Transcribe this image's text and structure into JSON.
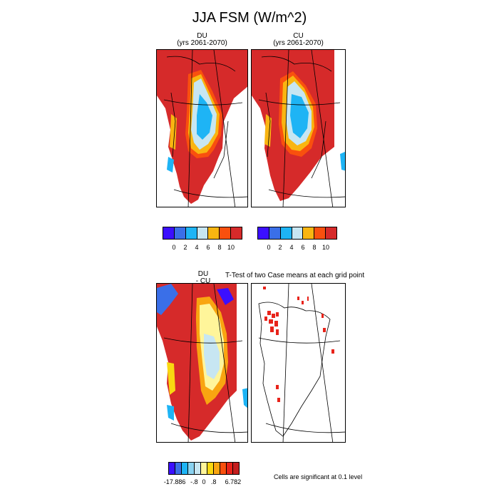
{
  "title": "JJA FSM (W/m^2)",
  "panels": [
    {
      "title_line1": "DU",
      "title_line2": "(yrs 2061-2070)"
    },
    {
      "title_line1": "CU",
      "title_line2": "(yrs 2061-2070)"
    },
    {
      "title_line1": "DU",
      "title_line2": "- CU"
    },
    {
      "title_line1": "T-Test of two Case means at each grid point",
      "title_line2": ""
    }
  ],
  "legends": {
    "abs": {
      "colors": [
        "#3b0fff",
        "#3a6fe8",
        "#1eb4f5",
        "#c7e6f2",
        "#f9b511",
        "#f9500e",
        "#d62a2a"
      ],
      "tick_labels": [
        "0",
        "2",
        "4",
        "6",
        "8",
        "10"
      ]
    },
    "diff": {
      "colors": [
        "#3b0fff",
        "#3a6fe8",
        "#1eb4f5",
        "#8ad2f0",
        "#c7e6f2",
        "#fff59a",
        "#f9d811",
        "#f9a511",
        "#f9500e",
        "#e8231a",
        "#c41e1e"
      ],
      "tick_labels": [
        "-17.886",
        "-.8",
        "0",
        ".8",
        "6.782"
      ]
    }
  },
  "significance_note": "Cells are significant at 0.1 level",
  "chart_data": [
    {
      "type": "heatmap",
      "title": "DU (yrs 2061-2070)",
      "levels": [
        0,
        2,
        4,
        6,
        8,
        10
      ]
    },
    {
      "type": "heatmap",
      "title": "CU (yrs 2061-2070)",
      "levels": [
        0,
        2,
        4,
        6,
        8,
        10
      ]
    },
    {
      "type": "heatmap",
      "title": "DU - CU",
      "levels": [
        -17.886,
        -0.8,
        0,
        0.8,
        6.782
      ]
    },
    {
      "type": "heatmap",
      "title": "T-Test of two Case means at each grid point",
      "levels": [
        0.1
      ]
    }
  ]
}
